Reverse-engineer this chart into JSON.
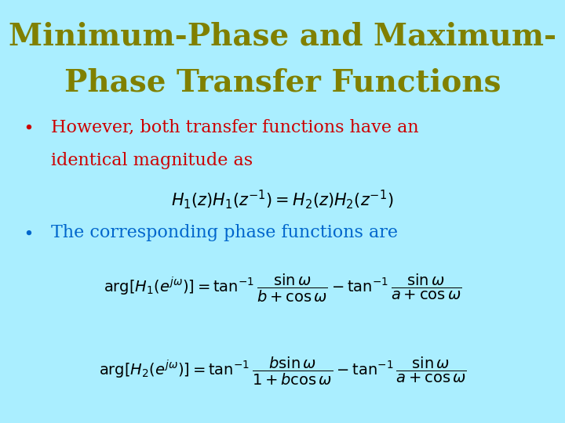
{
  "background_color": "#aaeeff",
  "title_line1": "Minimum-Phase and Maximum-",
  "title_line2": "Phase Transfer Functions",
  "title_color": "#808000",
  "title_fontsize": 28,
  "bullet1_color": "#cc0000",
  "bullet2_color": "#0066cc",
  "formula_color": "#000000",
  "bullet1_text_line1": "However, both transfer functions have an",
  "bullet1_text_line2": "identical magnitude as",
  "bullet2_text": "The corresponding phase functions are",
  "bullet_fontsize": 16,
  "eq_fontsize": 14,
  "eq1_fontsize": 15
}
